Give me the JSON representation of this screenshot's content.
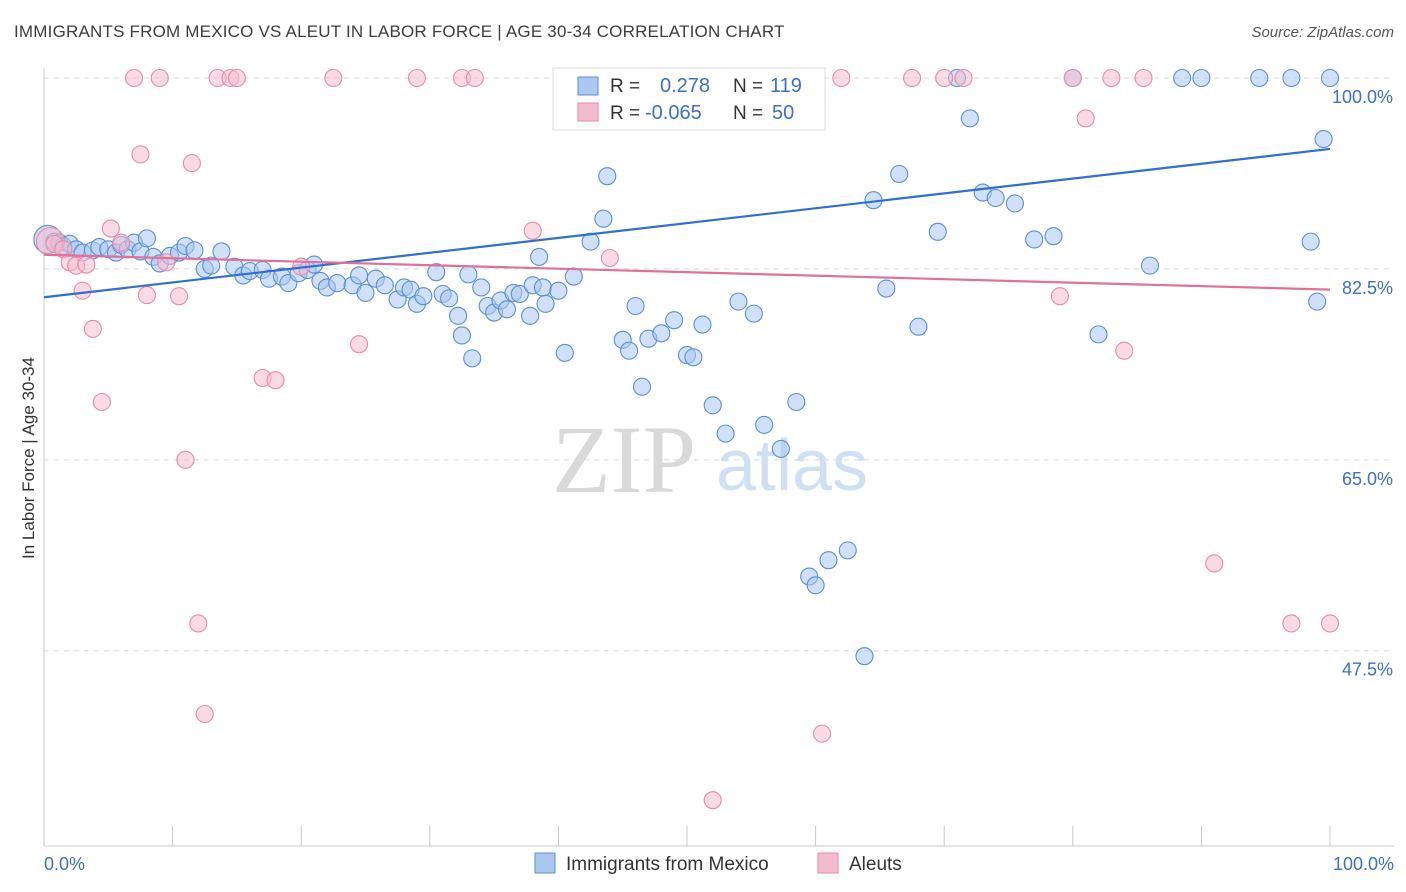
{
  "title": "IMMIGRANTS FROM MEXICO VS ALEUT IN LABOR FORCE | AGE 30-34 CORRELATION CHART",
  "source": "Source: ZipAtlas.com",
  "watermark": {
    "zip": "ZIP",
    "atlas": "atlas"
  },
  "legend_box": {
    "rows": [
      {
        "r_label": "R =",
        "r_value": "0.278",
        "n_label": "N =",
        "n_value": "119"
      },
      {
        "r_label": "R =",
        "r_value": "-0.065",
        "n_label": "N =",
        "n_value": "50"
      }
    ]
  },
  "colors": {
    "blue": "#5b8fd6",
    "blue_fill": "#aac8f0",
    "pink": "#e88aaa",
    "pink_fill": "#f5bccd",
    "blue_line": "#2f6fd0",
    "pink_line": "#e0709a",
    "grid": "#d8d8d8"
  },
  "chart_data": {
    "type": "scatter",
    "title": "IMMIGRANTS FROM MEXICO VS ALEUT IN LABOR FORCE | AGE 30-34 CORRELATION CHART",
    "xlabel": "",
    "ylabel": "In Labor Force | Age 30-34",
    "xlim": [
      0,
      100
    ],
    "ylim": [
      32,
      102
    ],
    "x_tick_labels": [
      "0.0%",
      "100.0%"
    ],
    "y_ticks": [
      47.5,
      65.0,
      82.5,
      100.0
    ],
    "y_tick_labels": [
      "47.5%",
      "65.0%",
      "82.5%",
      "100.0%"
    ],
    "grid": true,
    "legend_position": "bottom-center",
    "series": [
      {
        "name": "Immigrants from Mexico",
        "color": "#5b8fd6",
        "trend": {
          "x": [
            0,
            100
          ],
          "y": [
            79.9,
            93.5
          ]
        },
        "points": [
          [
            0.3,
            85.2
          ],
          [
            0.8,
            85.0
          ],
          [
            1.2,
            84.9
          ],
          [
            1.5,
            84.6
          ],
          [
            2.0,
            84.8
          ],
          [
            2.5,
            84.3
          ],
          [
            3.0,
            84.0
          ],
          [
            3.8,
            84.2
          ],
          [
            4.3,
            84.5
          ],
          [
            5.0,
            84.3
          ],
          [
            5.6,
            84.0
          ],
          [
            6.0,
            84.7
          ],
          [
            6.5,
            84.3
          ],
          [
            7.0,
            84.9
          ],
          [
            7.5,
            84.1
          ],
          [
            8.0,
            85.3
          ],
          [
            8.5,
            83.6
          ],
          [
            9.0,
            83.0
          ],
          [
            9.8,
            83.7
          ],
          [
            10.5,
            84.0
          ],
          [
            11.0,
            84.6
          ],
          [
            11.7,
            84.2
          ],
          [
            12.5,
            82.5
          ],
          [
            13.0,
            82.8
          ],
          [
            13.8,
            84.1
          ],
          [
            14.8,
            82.7
          ],
          [
            15.5,
            81.9
          ],
          [
            16.0,
            82.3
          ],
          [
            17.0,
            82.4
          ],
          [
            17.5,
            81.6
          ],
          [
            18.5,
            81.8
          ],
          [
            19.0,
            81.2
          ],
          [
            19.8,
            82.1
          ],
          [
            20.5,
            82.4
          ],
          [
            21.0,
            82.9
          ],
          [
            21.5,
            81.4
          ],
          [
            22.0,
            80.8
          ],
          [
            22.8,
            81.2
          ],
          [
            24.0,
            81.0
          ],
          [
            24.5,
            81.9
          ],
          [
            25.0,
            80.3
          ],
          [
            25.8,
            81.6
          ],
          [
            26.5,
            81.0
          ],
          [
            27.5,
            79.7
          ],
          [
            28.0,
            80.8
          ],
          [
            28.5,
            80.6
          ],
          [
            29.0,
            79.3
          ],
          [
            29.5,
            80.0
          ],
          [
            30.5,
            82.2
          ],
          [
            31.0,
            80.2
          ],
          [
            31.5,
            79.8
          ],
          [
            32.2,
            78.2
          ],
          [
            32.5,
            76.4
          ],
          [
            33.0,
            82.0
          ],
          [
            33.3,
            74.3
          ],
          [
            34.0,
            80.8
          ],
          [
            34.5,
            79.1
          ],
          [
            35.0,
            78.5
          ],
          [
            35.5,
            79.6
          ],
          [
            36.0,
            78.8
          ],
          [
            36.5,
            80.3
          ],
          [
            37.0,
            80.2
          ],
          [
            37.8,
            78.2
          ],
          [
            38.0,
            81.0
          ],
          [
            38.5,
            83.6
          ],
          [
            38.8,
            80.8
          ],
          [
            39.0,
            79.3
          ],
          [
            40.0,
            80.5
          ],
          [
            40.5,
            74.8
          ],
          [
            41.2,
            81.8
          ],
          [
            42.5,
            85.0
          ],
          [
            43.5,
            87.1
          ],
          [
            43.8,
            91.0
          ],
          [
            45.0,
            76.0
          ],
          [
            45.5,
            75.0
          ],
          [
            46.0,
            79.1
          ],
          [
            46.5,
            71.7
          ],
          [
            47.0,
            76.1
          ],
          [
            48.0,
            76.6
          ],
          [
            49.0,
            77.8
          ],
          [
            50.0,
            74.6
          ],
          [
            50.5,
            74.4
          ],
          [
            51.2,
            77.4
          ],
          [
            52.0,
            70.0
          ],
          [
            53.0,
            67.4
          ],
          [
            54.0,
            79.5
          ],
          [
            55.2,
            78.4
          ],
          [
            56.0,
            68.2
          ],
          [
            57.3,
            66.0
          ],
          [
            58.5,
            70.3
          ],
          [
            59.5,
            54.3
          ],
          [
            60.0,
            53.5
          ],
          [
            61.0,
            55.8
          ],
          [
            62.5,
            56.7
          ],
          [
            63.8,
            47.0
          ],
          [
            64.5,
            88.8
          ],
          [
            65.5,
            80.7
          ],
          [
            66.5,
            91.2
          ],
          [
            68.0,
            77.2
          ],
          [
            69.5,
            85.9
          ],
          [
            71.0,
            100.0
          ],
          [
            72.0,
            96.3
          ],
          [
            73.0,
            89.5
          ],
          [
            74.0,
            89.0
          ],
          [
            75.5,
            88.5
          ],
          [
            77.0,
            85.2
          ],
          [
            78.5,
            85.5
          ],
          [
            80.0,
            100.0
          ],
          [
            82.0,
            76.5
          ],
          [
            86.0,
            82.8
          ],
          [
            88.5,
            100.0
          ],
          [
            90.0,
            100.0
          ],
          [
            94.5,
            100.0
          ],
          [
            97.0,
            100.0
          ],
          [
            98.5,
            85.0
          ],
          [
            99.0,
            79.5
          ],
          [
            99.5,
            94.4
          ],
          [
            100.0,
            100.0
          ]
        ]
      },
      {
        "name": "Aleuts",
        "color": "#e88aaa",
        "trend": {
          "x": [
            0,
            100
          ],
          "y": [
            83.8,
            80.6
          ]
        },
        "points": [
          [
            0.5,
            85.0
          ],
          [
            0.8,
            84.8
          ],
          [
            1.5,
            84.3
          ],
          [
            2.0,
            83.1
          ],
          [
            2.5,
            82.8
          ],
          [
            3.0,
            80.5
          ],
          [
            3.3,
            82.9
          ],
          [
            3.8,
            77.0
          ],
          [
            4.5,
            70.3
          ],
          [
            5.2,
            86.2
          ],
          [
            6.0,
            84.9
          ],
          [
            7.0,
            100.0
          ],
          [
            7.5,
            93.0
          ],
          [
            8.0,
            80.1
          ],
          [
            9.0,
            100.0
          ],
          [
            9.5,
            83.1
          ],
          [
            10.5,
            80.0
          ],
          [
            11.0,
            65.0
          ],
          [
            11.5,
            92.2
          ],
          [
            12.0,
            50.0
          ],
          [
            12.5,
            41.7
          ],
          [
            13.5,
            100.0
          ],
          [
            14.5,
            100.0
          ],
          [
            15.0,
            100.0
          ],
          [
            17.0,
            72.5
          ],
          [
            18.0,
            72.3
          ],
          [
            20.0,
            82.7
          ],
          [
            22.5,
            100.0
          ],
          [
            24.5,
            75.6
          ],
          [
            29.0,
            100.0
          ],
          [
            32.5,
            100.0
          ],
          [
            33.5,
            100.0
          ],
          [
            38.0,
            86.0
          ],
          [
            44.0,
            83.5
          ],
          [
            52.0,
            33.8
          ],
          [
            58.0,
            100.0
          ],
          [
            60.5,
            39.9
          ],
          [
            62.0,
            100.0
          ],
          [
            67.5,
            100.0
          ],
          [
            70.0,
            100.0
          ],
          [
            71.5,
            100.0
          ],
          [
            79.0,
            80.0
          ],
          [
            80.0,
            100.0
          ],
          [
            81.0,
            96.3
          ],
          [
            83.0,
            100.0
          ],
          [
            84.0,
            75.0
          ],
          [
            85.5,
            100.0
          ],
          [
            91.0,
            55.5
          ],
          [
            97.0,
            50.0
          ],
          [
            100.0,
            50.0
          ]
        ]
      }
    ]
  }
}
